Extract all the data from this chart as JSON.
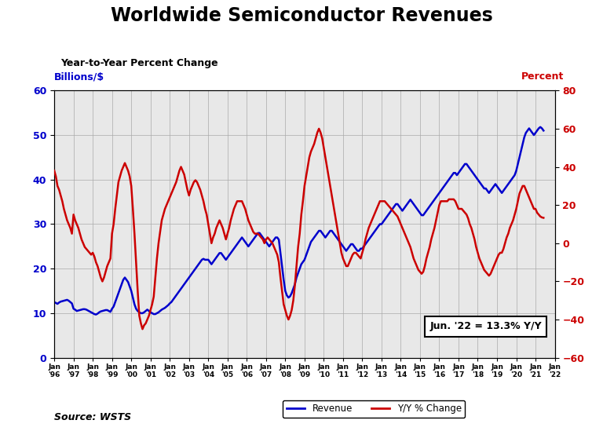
{
  "title": "Worldwide Semiconductor Revenues",
  "subtitle": "Year-to-Year Percent Change",
  "ylabel_left": "Billions/$",
  "ylabel_right": "Percent",
  "left_color": "#0000CC",
  "right_color": "#CC0000",
  "ylim_left": [
    0,
    60
  ],
  "ylim_right": [
    -60,
    80
  ],
  "yticks_left": [
    0,
    10,
    20,
    30,
    40,
    50,
    60
  ],
  "yticks_right": [
    -60,
    -40,
    -20,
    0,
    20,
    40,
    60,
    80
  ],
  "annotation_text": "Jun. '22 = 13.3% Y/Y",
  "source_text": "Source: WSTS",
  "legend_revenue": "Revenue",
  "legend_yoy": "Y/Y % Change",
  "x_start_year": 1996,
  "x_end_year": 2022,
  "rev_detailed": [
    12.5,
    12.3,
    12.1,
    12.4,
    12.6,
    12.7,
    12.8,
    12.9,
    13.0,
    12.8,
    12.5,
    12.2,
    11.0,
    10.8,
    10.5,
    10.6,
    10.7,
    10.8,
    10.9,
    10.9,
    10.8,
    10.6,
    10.4,
    10.2,
    10.0,
    9.8,
    9.7,
    9.9,
    10.2,
    10.4,
    10.5,
    10.6,
    10.7,
    10.7,
    10.5,
    10.3,
    11.0,
    11.5,
    12.5,
    13.5,
    14.5,
    15.5,
    16.5,
    17.5,
    18.0,
    17.5,
    17.0,
    16.0,
    15.0,
    13.5,
    12.0,
    11.0,
    10.5,
    10.2,
    10.0,
    10.0,
    10.2,
    10.5,
    10.8,
    10.5,
    10.2,
    10.0,
    9.8,
    9.8,
    10.0,
    10.2,
    10.5,
    10.8,
    11.0,
    11.2,
    11.5,
    11.8,
    12.2,
    12.5,
    13.0,
    13.5,
    14.0,
    14.5,
    15.0,
    15.5,
    16.0,
    16.5,
    17.0,
    17.5,
    18.0,
    18.5,
    19.0,
    19.5,
    20.0,
    20.5,
    21.0,
    21.5,
    22.0,
    22.2,
    22.0,
    22.0,
    22.0,
    21.5,
    21.0,
    21.5,
    22.0,
    22.5,
    23.0,
    23.5,
    23.5,
    23.0,
    22.5,
    22.0,
    22.5,
    23.0,
    23.5,
    24.0,
    24.5,
    25.0,
    25.5,
    26.0,
    26.5,
    27.0,
    26.5,
    26.0,
    25.5,
    25.0,
    25.5,
    26.0,
    26.5,
    27.0,
    27.5,
    28.0,
    28.0,
    27.5,
    27.0,
    26.5,
    26.0,
    25.5,
    25.0,
    25.5,
    26.0,
    26.5,
    27.0,
    27.0,
    26.5,
    23.5,
    20.5,
    17.5,
    15.0,
    14.0,
    13.5,
    13.8,
    14.5,
    15.5,
    16.5,
    18.0,
    19.0,
    20.0,
    21.0,
    21.5,
    22.0,
    23.0,
    24.0,
    25.0,
    26.0,
    26.5,
    27.0,
    27.5,
    28.0,
    28.5,
    28.5,
    28.0,
    27.5,
    27.0,
    27.5,
    28.0,
    28.5,
    28.5,
    28.0,
    27.5,
    27.0,
    26.5,
    26.0,
    25.5,
    25.0,
    24.5,
    24.0,
    24.5,
    25.0,
    25.5,
    25.5,
    25.0,
    24.5,
    24.0,
    24.0,
    24.5,
    24.5,
    25.0,
    25.5,
    26.0,
    26.5,
    27.0,
    27.5,
    28.0,
    28.5,
    29.0,
    29.5,
    30.0,
    30.0,
    30.5,
    31.0,
    31.5,
    32.0,
    32.5,
    33.0,
    33.5,
    34.0,
    34.5,
    34.5,
    34.0,
    33.5,
    33.0,
    33.5,
    34.0,
    34.5,
    35.0,
    35.5,
    35.0,
    34.5,
    34.0,
    33.5,
    33.0,
    32.5,
    32.0,
    32.0,
    32.5,
    33.0,
    33.5,
    34.0,
    34.5,
    35.0,
    35.5,
    36.0,
    36.5,
    37.0,
    37.5,
    38.0,
    38.5,
    39.0,
    39.5,
    40.0,
    40.5,
    41.0,
    41.5,
    41.5,
    41.0,
    41.5,
    42.0,
    42.5,
    43.0,
    43.5,
    43.5,
    43.0,
    42.5,
    42.0,
    41.5,
    41.0,
    40.5,
    40.0,
    39.5,
    39.0,
    38.5,
    38.0,
    38.0,
    37.5,
    37.0,
    37.5,
    38.0,
    38.5,
    39.0,
    38.5,
    38.0,
    37.5,
    37.0,
    37.5,
    38.0,
    38.5,
    39.0,
    39.5,
    40.0,
    40.5,
    41.0,
    42.0,
    43.5,
    45.0,
    46.5,
    48.0,
    49.5,
    50.5,
    51.0,
    51.5,
    51.0,
    50.5,
    50.0,
    50.5,
    51.0,
    51.5,
    51.8,
    51.5,
    51.0
  ],
  "yoy_detailed": [
    38.0,
    35.0,
    30.0,
    28.0,
    25.0,
    22.0,
    18.0,
    15.0,
    12.0,
    10.0,
    8.0,
    5.0,
    15.0,
    12.0,
    10.0,
    8.0,
    5.0,
    2.0,
    0.0,
    -2.0,
    -3.0,
    -4.0,
    -5.0,
    -6.0,
    -5.0,
    -7.0,
    -10.0,
    -12.0,
    -15.0,
    -18.0,
    -20.0,
    -18.0,
    -15.0,
    -12.0,
    -10.0,
    -8.0,
    5.0,
    10.0,
    18.0,
    25.0,
    32.0,
    35.0,
    38.0,
    40.0,
    42.0,
    40.0,
    38.0,
    35.0,
    30.0,
    18.0,
    5.0,
    -10.0,
    -25.0,
    -38.0,
    -42.0,
    -45.0,
    -43.0,
    -42.0,
    -40.0,
    -38.0,
    -35.0,
    -32.0,
    -28.0,
    -18.0,
    -8.0,
    0.0,
    6.0,
    12.0,
    15.0,
    18.0,
    20.0,
    22.0,
    24.0,
    26.0,
    28.0,
    30.0,
    32.0,
    35.0,
    38.0,
    40.0,
    38.0,
    36.0,
    32.0,
    28.0,
    25.0,
    28.0,
    30.0,
    32.0,
    33.0,
    32.0,
    30.0,
    28.0,
    25.0,
    22.0,
    18.0,
    15.0,
    10.0,
    5.0,
    0.0,
    3.0,
    5.0,
    8.0,
    10.0,
    12.0,
    10.0,
    8.0,
    5.0,
    2.0,
    5.0,
    8.0,
    12.0,
    15.0,
    18.0,
    20.0,
    22.0,
    22.0,
    22.0,
    22.0,
    20.0,
    18.0,
    15.0,
    12.0,
    10.0,
    8.0,
    6.0,
    5.0,
    5.0,
    5.0,
    4.0,
    3.0,
    2.0,
    0.0,
    2.0,
    3.0,
    2.0,
    1.0,
    0.0,
    -2.0,
    -4.0,
    -6.0,
    -10.0,
    -18.0,
    -25.0,
    -32.0,
    -35.0,
    -38.0,
    -40.0,
    -38.0,
    -35.0,
    -30.0,
    -22.0,
    -12.0,
    -2.0,
    5.0,
    15.0,
    22.0,
    30.0,
    35.0,
    40.0,
    45.0,
    48.0,
    50.0,
    52.0,
    55.0,
    58.0,
    60.0,
    58.0,
    55.0,
    50.0,
    45.0,
    40.0,
    35.0,
    30.0,
    25.0,
    20.0,
    15.0,
    10.0,
    5.0,
    0.0,
    -5.0,
    -8.0,
    -10.0,
    -12.0,
    -12.0,
    -10.0,
    -8.0,
    -6.0,
    -5.0,
    -5.0,
    -6.0,
    -7.0,
    -8.0,
    -5.0,
    -2.0,
    2.0,
    5.0,
    8.0,
    10.0,
    12.0,
    14.0,
    16.0,
    18.0,
    20.0,
    22.0,
    22.0,
    22.0,
    22.0,
    21.0,
    20.0,
    19.0,
    18.0,
    17.0,
    16.0,
    15.0,
    14.0,
    12.0,
    10.0,
    8.0,
    6.0,
    4.0,
    2.0,
    0.0,
    -2.0,
    -5.0,
    -8.0,
    -10.0,
    -12.0,
    -14.0,
    -15.0,
    -16.0,
    -15.0,
    -12.0,
    -8.0,
    -5.0,
    -2.0,
    2.0,
    5.0,
    8.0,
    12.0,
    16.0,
    20.0,
    22.0,
    22.0,
    22.0,
    22.0,
    22.0,
    23.0,
    23.0,
    23.0,
    23.0,
    22.0,
    20.0,
    18.0,
    18.0,
    18.0,
    17.0,
    16.0,
    15.0,
    13.0,
    10.0,
    8.0,
    5.0,
    2.0,
    -2.0,
    -5.0,
    -8.0,
    -10.0,
    -12.0,
    -14.0,
    -15.0,
    -16.0,
    -17.0,
    -16.0,
    -14.0,
    -12.0,
    -10.0,
    -8.0,
    -6.0,
    -5.0,
    -5.0,
    -3.0,
    0.0,
    3.0,
    5.0,
    8.0,
    10.0,
    12.0,
    15.0,
    18.0,
    22.0,
    26.0,
    28.0,
    30.0,
    30.0,
    28.0,
    26.0,
    24.0,
    22.0,
    20.0,
    18.0,
    18.0,
    16.0,
    15.0,
    14.0,
    13.5,
    13.3
  ]
}
